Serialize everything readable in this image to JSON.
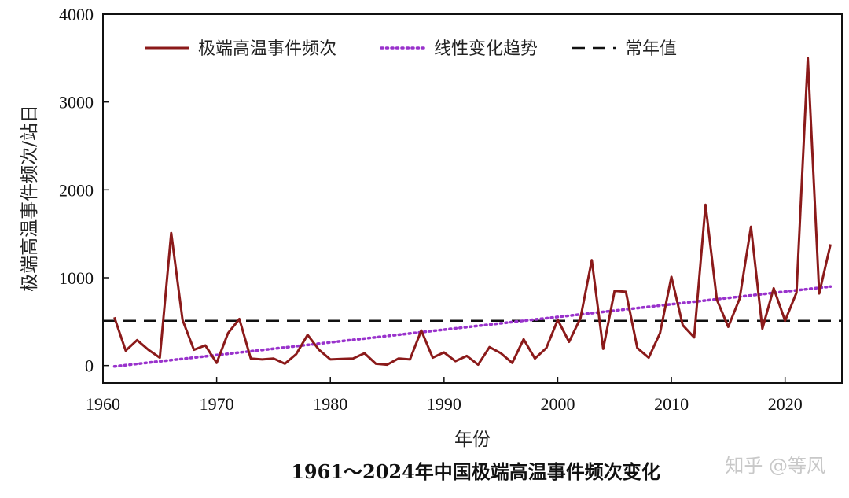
{
  "chart_data": {
    "type": "line",
    "title": "1961～2024年中国极端高温事件频次变化",
    "xlabel": "年份",
    "ylabel": "极端高温事件频次/站日",
    "xlim": [
      1960,
      2025
    ],
    "ylim": [
      -200,
      4000
    ],
    "xticks": [
      1960,
      1970,
      1980,
      1990,
      2000,
      2010,
      2020
    ],
    "yticks": [
      0,
      1000,
      2000,
      3000,
      4000
    ],
    "grid": false,
    "legend_position": "top",
    "series": [
      {
        "name": "极端高温事件频次",
        "style": "solid",
        "color": "#8b1a1a",
        "x": [
          1961,
          1962,
          1963,
          1964,
          1965,
          1966,
          1967,
          1968,
          1969,
          1970,
          1971,
          1972,
          1973,
          1974,
          1975,
          1976,
          1977,
          1978,
          1979,
          1980,
          1981,
          1982,
          1983,
          1984,
          1985,
          1986,
          1987,
          1988,
          1989,
          1990,
          1991,
          1992,
          1993,
          1994,
          1995,
          1996,
          1997,
          1998,
          1999,
          2000,
          2001,
          2002,
          2003,
          2004,
          2005,
          2006,
          2007,
          2008,
          2009,
          2010,
          2011,
          2012,
          2013,
          2014,
          2015,
          2016,
          2017,
          2018,
          2019,
          2020,
          2021,
          2022,
          2023,
          2024
        ],
        "values": [
          550,
          170,
          290,
          180,
          90,
          1510,
          520,
          180,
          230,
          30,
          370,
          530,
          80,
          70,
          80,
          20,
          130,
          350,
          180,
          70,
          75,
          80,
          140,
          20,
          10,
          80,
          70,
          400,
          90,
          150,
          50,
          110,
          10,
          210,
          140,
          30,
          300,
          80,
          200,
          520,
          270,
          540,
          1200,
          190,
          850,
          840,
          200,
          90,
          370,
          1010,
          460,
          320,
          1830,
          750,
          440,
          760,
          1580,
          420,
          880,
          510,
          830,
          3500,
          820,
          1380
        ]
      },
      {
        "name": "线性变化趋势",
        "style": "dotted",
        "color": "#9932cc",
        "x": [
          1961,
          2024
        ],
        "values": [
          -10,
          900
        ]
      },
      {
        "name": "常年值",
        "style": "dashed",
        "color": "#111111",
        "x": [
          1960,
          2025
        ],
        "values": [
          510,
          510
        ]
      }
    ]
  },
  "watermark": "知乎 @等风"
}
